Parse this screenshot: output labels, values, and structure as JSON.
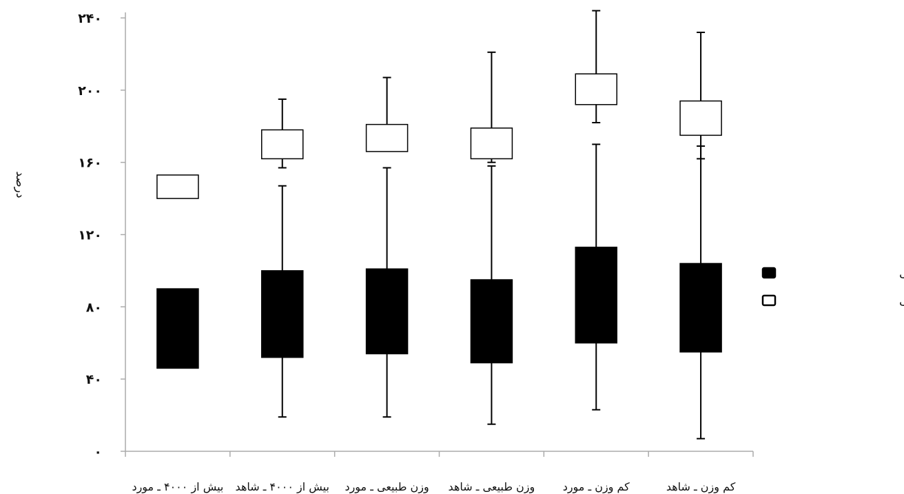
{
  "chart_data": {
    "type": "boxplot",
    "ylabel": "درصد",
    "ylim": [
      0,
      240
    ],
    "yticks": [
      0,
      40,
      80,
      120,
      160,
      200,
      240
    ],
    "ytick_labels": [
      "۰",
      "۴۰",
      "۸۰",
      "۱۲۰",
      "۱۶۰",
      "۲۰۰",
      "۲۴۰"
    ],
    "categories": [
      "کم وزن ـ شاهد",
      "کم وزن ـ مورد",
      "وزن طبیعی ـ شاهد",
      "وزن طبیعی ـ مورد",
      "بیش از ۴۰۰۰ ـ شاهد",
      "بیش از ۴۰۰۰ ـ مورد"
    ],
    "legend_position": "right",
    "series": [
      {
        "name": "توده بدون چربی",
        "fill": "#000000",
        "boxes": [
          {
            "q1": 46,
            "q3": 90,
            "low": null,
            "high": null
          },
          {
            "q1": 52,
            "q3": 100,
            "low": 19,
            "high": 147
          },
          {
            "q1": 54,
            "q3": 101,
            "low": 19,
            "high": 157
          },
          {
            "q1": 49,
            "q3": 95,
            "low": 15,
            "high": 158
          },
          {
            "q1": 60,
            "q3": 113,
            "low": 23,
            "high": 170
          },
          {
            "q1": 55,
            "q3": 104,
            "low": 7,
            "high": 169
          }
        ]
      },
      {
        "name": "توده چربی",
        "fill": "#ffffff",
        "boxes": [
          {
            "q1": 140,
            "q3": 153,
            "low": null,
            "high": null
          },
          {
            "q1": 162,
            "q3": 178,
            "low": 157,
            "high": 195
          },
          {
            "q1": 166,
            "q3": 181,
            "low": null,
            "high": 207
          },
          {
            "q1": 162,
            "q3": 179,
            "low": 160,
            "high": 221
          },
          {
            "q1": 192,
            "q3": 209,
            "low": 182,
            "high": 244
          },
          {
            "q1": 175,
            "q3": 194,
            "low": 162,
            "high": 232
          }
        ]
      }
    ]
  }
}
